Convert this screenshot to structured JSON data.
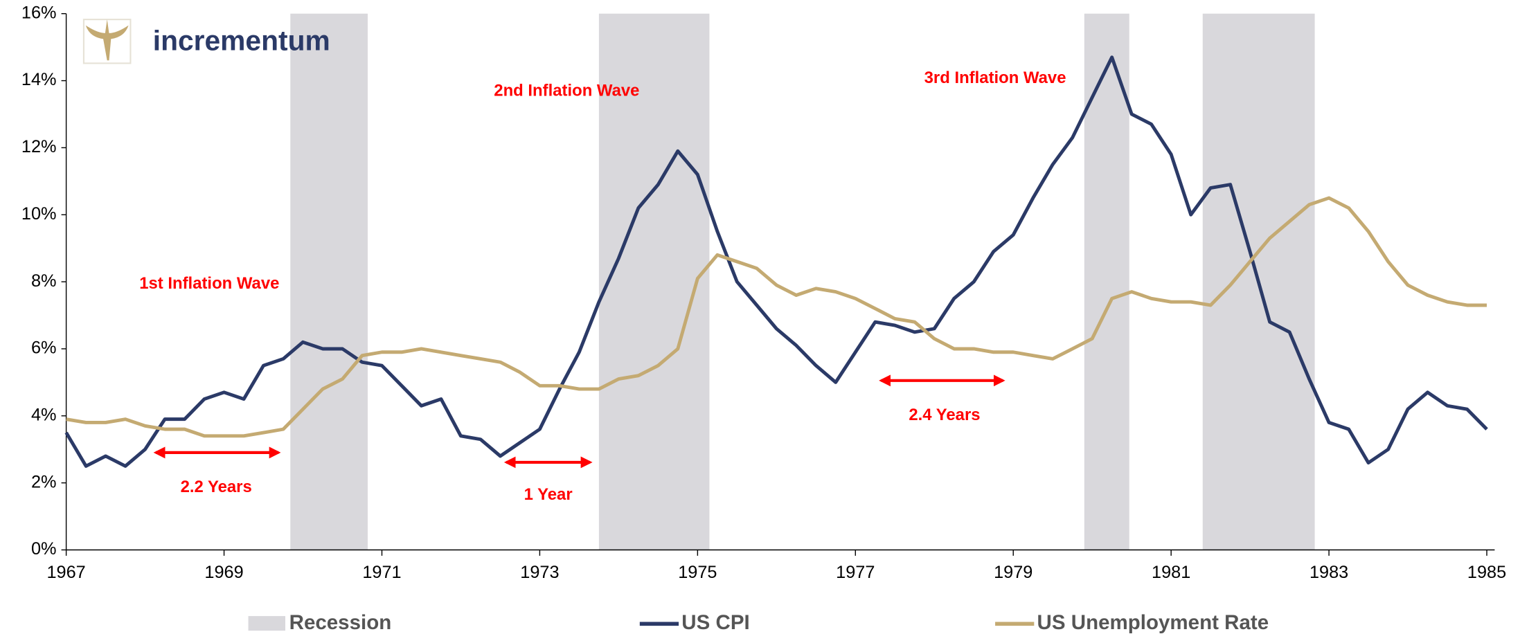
{
  "chart_data": {
    "type": "line",
    "brand": "incrementum",
    "annotations": [
      "1st Inflation Wave",
      "2nd Inflation Wave",
      "3rd Inflation Wave",
      "2.2 Years",
      "1 Year",
      "2.4 Years"
    ],
    "xlim": [
      1967,
      1985.1
    ],
    "xticks": [
      1967,
      1969,
      1971,
      1973,
      1975,
      1977,
      1979,
      1981,
      1983,
      1985
    ],
    "ylim": [
      0,
      16
    ],
    "yticks": [
      {
        "value": 0,
        "label": "0%"
      },
      {
        "value": 2,
        "label": "2%"
      },
      {
        "value": 4,
        "label": "4%"
      },
      {
        "value": 6,
        "label": "6%"
      },
      {
        "value": 8,
        "label": "8%"
      },
      {
        "value": 10,
        "label": "10%"
      },
      {
        "value": 12,
        "label": "12%"
      },
      {
        "value": 14,
        "label": "14%"
      },
      {
        "value": 16,
        "label": "16%"
      }
    ],
    "recessions": {
      "name": "Recession",
      "color": "#d9d8dc",
      "periods": [
        [
          1969.84,
          1970.82
        ],
        [
          1973.75,
          1975.15
        ],
        [
          1979.9,
          1980.47
        ],
        [
          1981.4,
          1982.82
        ]
      ]
    },
    "x": [
      1967,
      1967.25,
      1967.5,
      1967.75,
      1968,
      1968.25,
      1968.5,
      1968.75,
      1969,
      1969.25,
      1969.5,
      1969.75,
      1970,
      1970.25,
      1970.5,
      1970.75,
      1971,
      1971.25,
      1971.5,
      1971.75,
      1972,
      1972.25,
      1972.5,
      1972.75,
      1973,
      1973.25,
      1973.5,
      1973.75,
      1974,
      1974.25,
      1974.5,
      1974.75,
      1975,
      1975.25,
      1975.5,
      1975.75,
      1976,
      1976.25,
      1976.5,
      1976.75,
      1977,
      1977.25,
      1977.5,
      1977.75,
      1978,
      1978.25,
      1978.5,
      1978.75,
      1979,
      1979.25,
      1979.5,
      1979.75,
      1980,
      1980.25,
      1980.5,
      1980.75,
      1981,
      1981.25,
      1981.5,
      1981.75,
      1982,
      1982.25,
      1982.5,
      1982.75,
      1983,
      1983.25,
      1983.5,
      1983.75,
      1984,
      1984.25,
      1984.5,
      1984.75,
      1985
    ],
    "series": [
      {
        "name": "US CPI",
        "color": "#2b3a67",
        "values": [
          3.5,
          2.5,
          2.8,
          2.5,
          3.0,
          3.9,
          3.9,
          4.5,
          4.7,
          4.5,
          5.5,
          5.7,
          6.2,
          6.0,
          6.0,
          5.6,
          5.5,
          4.9,
          4.3,
          4.5,
          3.4,
          3.3,
          2.8,
          3.2,
          3.6,
          4.8,
          5.9,
          7.4,
          8.7,
          10.2,
          10.9,
          11.9,
          11.2,
          9.5,
          8.0,
          7.3,
          6.6,
          6.1,
          5.5,
          5.0,
          5.9,
          6.8,
          6.7,
          6.5,
          6.6,
          7.5,
          8.0,
          8.9,
          9.4,
          10.5,
          11.5,
          12.3,
          13.5,
          14.7,
          13.0,
          12.7,
          11.8,
          10.0,
          10.8,
          10.9,
          8.9,
          6.8,
          6.5,
          5.1,
          3.8,
          3.6,
          2.6,
          3.0,
          4.2,
          4.7,
          4.3,
          4.2,
          3.6
        ]
      },
      {
        "name": "US Unemployment Rate",
        "color": "#c4aa72",
        "values": [
          3.9,
          3.8,
          3.8,
          3.9,
          3.7,
          3.6,
          3.6,
          3.4,
          3.4,
          3.4,
          3.5,
          3.6,
          4.2,
          4.8,
          5.1,
          5.8,
          5.9,
          5.9,
          6.0,
          5.9,
          5.8,
          5.7,
          5.6,
          5.3,
          4.9,
          4.9,
          4.8,
          4.8,
          5.1,
          5.2,
          5.5,
          6.0,
          8.1,
          8.8,
          8.6,
          8.4,
          7.9,
          7.6,
          7.8,
          7.7,
          7.5,
          7.2,
          6.9,
          6.8,
          6.3,
          6.0,
          6.0,
          5.9,
          5.9,
          5.8,
          5.7,
          6.0,
          6.3,
          7.5,
          7.7,
          7.5,
          7.4,
          7.4,
          7.3,
          7.9,
          8.6,
          9.3,
          9.8,
          10.3,
          10.5,
          10.2,
          9.5,
          8.6,
          7.9,
          7.6,
          7.4,
          7.3,
          7.3
        ]
      }
    ]
  }
}
